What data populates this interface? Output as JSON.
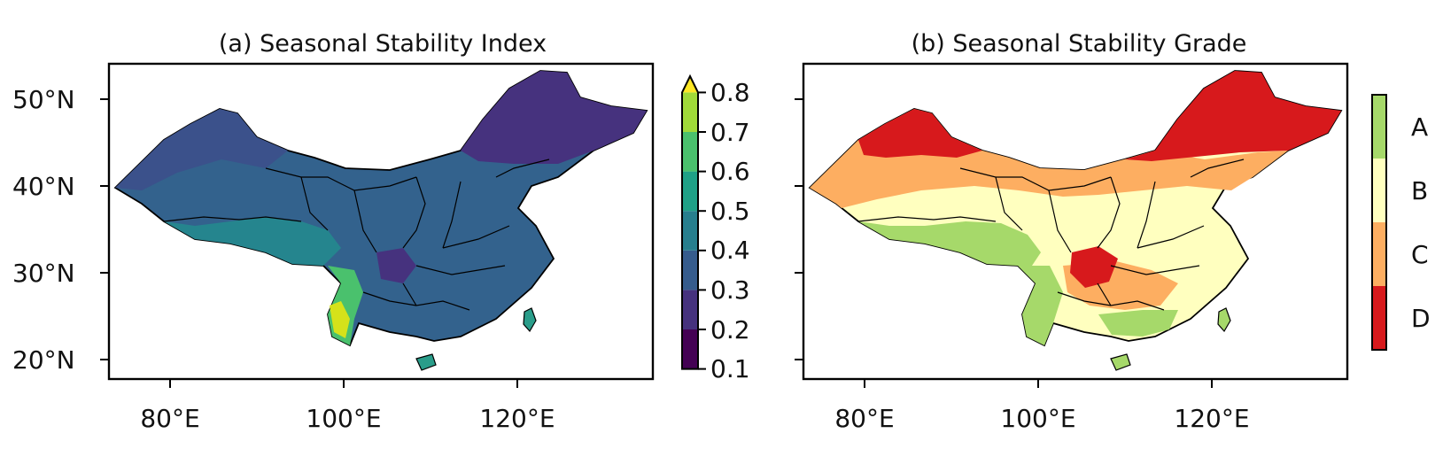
{
  "panels": [
    {
      "id": "a",
      "title": "(a) Seasonal Stability Index",
      "lat_ticks": [
        "50°N",
        "40°N",
        "30°N",
        "20°N"
      ],
      "lon_ticks": [
        "80°E",
        "100°E",
        "120°E"
      ],
      "colorbar": {
        "ticks": [
          "0.8",
          "0.7",
          "0.6",
          "0.5",
          "0.4",
          "0.3",
          "0.2",
          "0.1"
        ],
        "colors": [
          "#440154",
          "#46327e",
          "#365c8d",
          "#277f8e",
          "#1fa187",
          "#4ac16d",
          "#a0da39",
          "#fde725"
        ],
        "extend": "max"
      }
    },
    {
      "id": "b",
      "title": "(b) Seasonal Stability Grade",
      "lon_ticks": [
        "80°E",
        "100°E",
        "120°E"
      ],
      "colorbar": {
        "labels": [
          "A",
          "B",
          "C",
          "D"
        ],
        "colors": [
          "#a6d96a",
          "#ffffbf",
          "#fdae61",
          "#d7191c"
        ]
      }
    }
  ]
}
